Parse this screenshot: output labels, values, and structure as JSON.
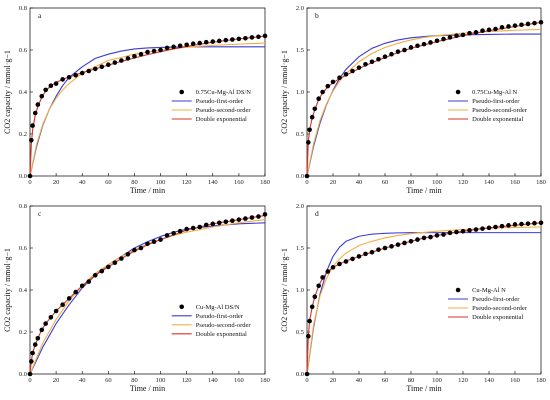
{
  "chart_data": [
    {
      "type": "line",
      "panel_letter": "a",
      "xlabel": "Time / min",
      "ylabel": "CO2 capacity / mmol·g−1",
      "xlim": [
        0,
        180
      ],
      "ylim": [
        0,
        0.8
      ],
      "x_ticks": [
        "0",
        "20",
        "40",
        "60",
        "80",
        "100",
        "120",
        "140",
        "160",
        "180"
      ],
      "y_ticks": [
        "0.0",
        "0.2",
        "0.4",
        "0.6",
        "0.8"
      ],
      "legend_position": "center-right",
      "series": [
        {
          "name": "0.75Cu-Mg-Al DS/N",
          "style": "markers",
          "color": "#000000",
          "x": [
            0,
            1,
            2,
            4,
            6,
            9,
            12,
            16,
            20,
            25,
            30,
            35,
            40,
            45,
            50,
            55,
            60,
            65,
            70,
            75,
            80,
            85,
            90,
            95,
            100,
            105,
            110,
            115,
            120,
            125,
            130,
            135,
            140,
            145,
            150,
            155,
            160,
            165,
            170,
            175,
            180
          ],
          "y": [
            0.0,
            0.17,
            0.24,
            0.3,
            0.34,
            0.38,
            0.41,
            0.43,
            0.44,
            0.46,
            0.47,
            0.48,
            0.49,
            0.5,
            0.51,
            0.52,
            0.53,
            0.54,
            0.55,
            0.56,
            0.57,
            0.58,
            0.59,
            0.595,
            0.6,
            0.61,
            0.615,
            0.62,
            0.625,
            0.63,
            0.633,
            0.637,
            0.64,
            0.643,
            0.647,
            0.65,
            0.653,
            0.656,
            0.66,
            0.663,
            0.667
          ]
        },
        {
          "name": "Pseudo-first-order",
          "style": "line",
          "color": "#3b3bd6",
          "x": [
            0,
            5,
            10,
            15,
            20,
            25,
            30,
            40,
            50,
            60,
            70,
            80,
            90,
            100,
            110,
            120,
            140,
            160,
            180
          ],
          "y": [
            0,
            0.14,
            0.245,
            0.32,
            0.38,
            0.43,
            0.47,
            0.52,
            0.56,
            0.58,
            0.595,
            0.605,
            0.61,
            0.612,
            0.614,
            0.615,
            0.615,
            0.615,
            0.615
          ]
        },
        {
          "name": "Pseudo-second-order",
          "style": "line",
          "color": "#f0b040",
          "x": [
            0,
            5,
            10,
            15,
            20,
            25,
            30,
            40,
            50,
            60,
            70,
            80,
            90,
            100,
            110,
            120,
            140,
            160,
            180
          ],
          "y": [
            0,
            0.15,
            0.25,
            0.32,
            0.37,
            0.41,
            0.44,
            0.49,
            0.52,
            0.55,
            0.565,
            0.58,
            0.59,
            0.6,
            0.607,
            0.613,
            0.622,
            0.628,
            0.633
          ]
        },
        {
          "name": "Double exponential",
          "style": "line",
          "color": "#d9302a",
          "x": [
            0,
            1,
            2,
            4,
            6,
            9,
            12,
            16,
            20,
            25,
            30,
            40,
            50,
            60,
            70,
            80,
            90,
            100,
            110,
            120,
            140,
            160,
            180
          ],
          "y": [
            0,
            0.15,
            0.22,
            0.29,
            0.33,
            0.375,
            0.405,
            0.43,
            0.445,
            0.46,
            0.472,
            0.492,
            0.51,
            0.528,
            0.546,
            0.562,
            0.578,
            0.592,
            0.605,
            0.617,
            0.637,
            0.653,
            0.666
          ]
        }
      ]
    },
    {
      "type": "line",
      "panel_letter": "b",
      "xlabel": "Time / min",
      "ylabel": "CO2 capacity / mmol·g−1",
      "xlim": [
        0,
        180
      ],
      "ylim": [
        0,
        2.0
      ],
      "x_ticks": [
        "0",
        "20",
        "40",
        "60",
        "80",
        "100",
        "120",
        "140",
        "160",
        "180"
      ],
      "y_ticks": [
        "0.0",
        "0.5",
        "1.0",
        "1.5",
        "2.0"
      ],
      "legend_position": "center-right",
      "series": [
        {
          "name": "0.75Cu-Mg-Al N",
          "style": "markers",
          "color": "#000000",
          "x": [
            0,
            1,
            2,
            4,
            6,
            9,
            12,
            16,
            20,
            25,
            30,
            35,
            40,
            45,
            50,
            55,
            60,
            65,
            70,
            75,
            80,
            85,
            90,
            95,
            100,
            105,
            110,
            115,
            120,
            125,
            130,
            135,
            140,
            145,
            150,
            155,
            160,
            165,
            170,
            175,
            180
          ],
          "y": [
            0.0,
            0.4,
            0.55,
            0.7,
            0.8,
            0.92,
            1.0,
            1.07,
            1.12,
            1.17,
            1.21,
            1.25,
            1.29,
            1.33,
            1.36,
            1.39,
            1.42,
            1.45,
            1.48,
            1.5,
            1.53,
            1.55,
            1.57,
            1.59,
            1.61,
            1.63,
            1.65,
            1.67,
            1.68,
            1.7,
            1.71,
            1.73,
            1.74,
            1.75,
            1.77,
            1.78,
            1.79,
            1.8,
            1.81,
            1.82,
            1.83
          ]
        },
        {
          "name": "Pseudo-first-order",
          "style": "line",
          "color": "#3b3bd6",
          "x": [
            0,
            5,
            10,
            15,
            20,
            25,
            30,
            40,
            50,
            60,
            70,
            80,
            90,
            100,
            120,
            140,
            160,
            180
          ],
          "y": [
            0,
            0.35,
            0.63,
            0.85,
            1.02,
            1.16,
            1.27,
            1.42,
            1.52,
            1.58,
            1.62,
            1.645,
            1.66,
            1.67,
            1.68,
            1.685,
            1.69,
            1.69
          ]
        },
        {
          "name": "Pseudo-second-order",
          "style": "line",
          "color": "#f0b040",
          "x": [
            0,
            5,
            10,
            15,
            20,
            25,
            30,
            40,
            50,
            60,
            70,
            80,
            90,
            100,
            120,
            140,
            160,
            180
          ],
          "y": [
            0,
            0.38,
            0.66,
            0.86,
            1.01,
            1.13,
            1.22,
            1.36,
            1.46,
            1.53,
            1.58,
            1.62,
            1.65,
            1.67,
            1.7,
            1.72,
            1.735,
            1.745
          ]
        },
        {
          "name": "Double exponential",
          "style": "line",
          "color": "#d9302a",
          "x": [
            0,
            1,
            2,
            4,
            6,
            9,
            12,
            16,
            20,
            25,
            30,
            40,
            50,
            60,
            70,
            80,
            90,
            100,
            120,
            140,
            160,
            180
          ],
          "y": [
            0,
            0.4,
            0.55,
            0.69,
            0.79,
            0.91,
            0.99,
            1.06,
            1.11,
            1.16,
            1.2,
            1.28,
            1.35,
            1.41,
            1.47,
            1.52,
            1.56,
            1.6,
            1.67,
            1.73,
            1.78,
            1.83
          ]
        }
      ]
    },
    {
      "type": "line",
      "panel_letter": "c",
      "xlabel": "Time / min",
      "ylabel": "CO2 capacity / mmol·g−1",
      "xlim": [
        0,
        180
      ],
      "ylim": [
        0,
        0.8
      ],
      "x_ticks": [
        "0",
        "20",
        "40",
        "60",
        "80",
        "100",
        "120",
        "140",
        "160",
        "180"
      ],
      "y_ticks": [
        "0.0",
        "0.2",
        "0.4",
        "0.6",
        "0.8"
      ],
      "legend_position": "lower-right",
      "series": [
        {
          "name": "Cu-Mg-Al DS/N",
          "style": "markers",
          "color": "#000000",
          "x": [
            0,
            1,
            2,
            4,
            6,
            9,
            12,
            16,
            20,
            25,
            30,
            35,
            40,
            45,
            50,
            55,
            60,
            65,
            70,
            75,
            80,
            85,
            90,
            95,
            100,
            105,
            110,
            115,
            120,
            125,
            130,
            135,
            140,
            145,
            150,
            155,
            160,
            165,
            170,
            175,
            180
          ],
          "y": [
            0.0,
            0.06,
            0.1,
            0.14,
            0.17,
            0.21,
            0.24,
            0.27,
            0.3,
            0.33,
            0.36,
            0.39,
            0.42,
            0.44,
            0.47,
            0.49,
            0.51,
            0.53,
            0.55,
            0.57,
            0.59,
            0.6,
            0.62,
            0.63,
            0.64,
            0.66,
            0.67,
            0.68,
            0.69,
            0.695,
            0.7,
            0.71,
            0.715,
            0.72,
            0.725,
            0.73,
            0.735,
            0.74,
            0.745,
            0.75,
            0.76
          ]
        },
        {
          "name": "Pseudo-first-order",
          "style": "line",
          "color": "#3b3bd6",
          "x": [
            0,
            10,
            20,
            30,
            40,
            50,
            60,
            70,
            80,
            90,
            100,
            110,
            120,
            140,
            160,
            180
          ],
          "y": [
            0,
            0.13,
            0.24,
            0.33,
            0.41,
            0.47,
            0.52,
            0.56,
            0.6,
            0.63,
            0.655,
            0.675,
            0.69,
            0.705,
            0.715,
            0.72
          ]
        },
        {
          "name": "Pseudo-second-order",
          "style": "line",
          "color": "#f0b040",
          "x": [
            0,
            10,
            20,
            30,
            40,
            50,
            60,
            70,
            80,
            90,
            100,
            110,
            120,
            140,
            160,
            180
          ],
          "y": [
            0,
            0.15,
            0.26,
            0.35,
            0.42,
            0.48,
            0.52,
            0.56,
            0.59,
            0.62,
            0.64,
            0.66,
            0.675,
            0.7,
            0.72,
            0.735
          ]
        },
        {
          "name": "Double exponential",
          "style": "line",
          "color": "#d9302a",
          "x": [
            0,
            1,
            2,
            4,
            6,
            9,
            12,
            16,
            20,
            25,
            30,
            40,
            50,
            60,
            70,
            80,
            90,
            100,
            120,
            140,
            160,
            180
          ],
          "y": [
            0,
            0.06,
            0.1,
            0.14,
            0.17,
            0.21,
            0.24,
            0.27,
            0.3,
            0.33,
            0.36,
            0.42,
            0.47,
            0.51,
            0.55,
            0.585,
            0.615,
            0.64,
            0.685,
            0.715,
            0.735,
            0.755
          ]
        }
      ]
    },
    {
      "type": "line",
      "panel_letter": "d",
      "xlabel": "Time / min",
      "ylabel": "CO2 capacity / mmol·g−1",
      "xlim": [
        0,
        180
      ],
      "ylim": [
        0,
        2.0
      ],
      "x_ticks": [
        "0",
        "20",
        "40",
        "60",
        "80",
        "100",
        "120",
        "140",
        "160",
        "180"
      ],
      "y_ticks": [
        "0.0",
        "0.5",
        "1.0",
        "1.5",
        "2.0"
      ],
      "legend_position": "center-right",
      "series": [
        {
          "name": "Cu-Mg-Al N",
          "style": "markers",
          "color": "#000000",
          "x": [
            0,
            1,
            2,
            4,
            6,
            9,
            12,
            16,
            20,
            25,
            30,
            35,
            40,
            45,
            50,
            55,
            60,
            65,
            70,
            75,
            80,
            85,
            90,
            95,
            100,
            105,
            110,
            115,
            120,
            125,
            130,
            135,
            140,
            145,
            150,
            155,
            160,
            165,
            170,
            175,
            180
          ],
          "y": [
            0.0,
            0.45,
            0.63,
            0.8,
            0.92,
            1.05,
            1.15,
            1.22,
            1.27,
            1.31,
            1.34,
            1.37,
            1.4,
            1.43,
            1.45,
            1.48,
            1.5,
            1.52,
            1.54,
            1.56,
            1.58,
            1.6,
            1.62,
            1.63,
            1.65,
            1.66,
            1.68,
            1.69,
            1.7,
            1.71,
            1.72,
            1.73,
            1.74,
            1.75,
            1.76,
            1.77,
            1.78,
            1.785,
            1.79,
            1.795,
            1.8
          ]
        },
        {
          "name": "Pseudo-first-order",
          "style": "line",
          "color": "#3b3bd6",
          "x": [
            0,
            5,
            10,
            15,
            20,
            25,
            30,
            40,
            50,
            60,
            70,
            80,
            100,
            120,
            140,
            160,
            180
          ],
          "y": [
            0,
            0.55,
            0.95,
            1.22,
            1.4,
            1.51,
            1.58,
            1.64,
            1.665,
            1.675,
            1.68,
            1.682,
            1.683,
            1.683,
            1.683,
            1.683,
            1.683
          ]
        },
        {
          "name": "Pseudo-second-order",
          "style": "line",
          "color": "#f0b040",
          "x": [
            0,
            5,
            10,
            15,
            20,
            25,
            30,
            40,
            50,
            60,
            70,
            80,
            100,
            120,
            140,
            160,
            180
          ],
          "y": [
            0,
            0.58,
            0.93,
            1.14,
            1.28,
            1.37,
            1.44,
            1.53,
            1.58,
            1.62,
            1.65,
            1.67,
            1.7,
            1.72,
            1.735,
            1.745,
            1.75
          ]
        },
        {
          "name": "Double exponential",
          "style": "line",
          "color": "#d9302a",
          "x": [
            0,
            1,
            2,
            4,
            6,
            9,
            12,
            16,
            20,
            25,
            30,
            40,
            50,
            60,
            70,
            80,
            90,
            100,
            120,
            140,
            160,
            180
          ],
          "y": [
            0,
            0.45,
            0.63,
            0.8,
            0.92,
            1.05,
            1.14,
            1.22,
            1.27,
            1.31,
            1.345,
            1.4,
            1.45,
            1.5,
            1.54,
            1.58,
            1.62,
            1.65,
            1.7,
            1.74,
            1.77,
            1.8
          ]
        }
      ]
    }
  ]
}
